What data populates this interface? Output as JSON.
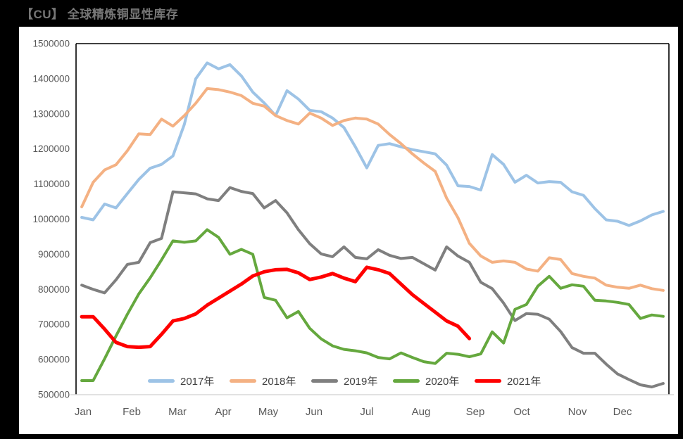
{
  "frame": {
    "title": "【CU】 全球精炼铜显性库存"
  },
  "styles": {
    "canvas_bg": "#000000",
    "panel_bg": "#FFFFFF",
    "title_color": "#777777",
    "axis_text": "#595959",
    "legend_text": "#404040",
    "plot_border": "#000000",
    "baseline": "#D9D9D9"
  },
  "chart_data": {
    "type": "line",
    "title": "【CU】 全球精炼铜显性库存",
    "x_unit": "weekly observations, January to December",
    "x_tick_labels": [
      "Jan",
      "Feb",
      "Mar",
      "Apr",
      "May",
      "Jun",
      "Jul",
      "Aug",
      "Sep",
      "Oct",
      "Nov",
      "Dec"
    ],
    "y_axis": {
      "min": 500000,
      "max": 1500000,
      "step": 100000
    },
    "grid": false,
    "legend_position": "bottom-inside",
    "legend": [
      "2017年",
      "2018年",
      "2019年",
      "2020年",
      "2021年"
    ],
    "series": [
      {
        "name": "2017年",
        "color": "#9DC3E6",
        "values": [
          1005000,
          998000,
          1043000,
          1032000,
          1073000,
          1113000,
          1145000,
          1156000,
          1180000,
          1270000,
          1400000,
          1445000,
          1428000,
          1440000,
          1408000,
          1362000,
          1331000,
          1295000,
          1366000,
          1342000,
          1310000,
          1306000,
          1288000,
          1261000,
          1206000,
          1146000,
          1210000,
          1215000,
          1206000,
          1198000,
          1192000,
          1186000,
          1154000,
          1095000,
          1093000,
          1083000,
          1184000,
          1156000,
          1105000,
          1125000,
          1103000,
          1107000,
          1105000,
          1078000,
          1068000,
          1030000,
          998000,
          994000,
          982000,
          995000,
          1012000,
          1022000
        ]
      },
      {
        "name": "2018年",
        "color": "#F4B183",
        "values": [
          1035000,
          1105000,
          1140000,
          1155000,
          1195000,
          1243000,
          1241000,
          1285000,
          1265000,
          1295000,
          1330000,
          1372000,
          1369000,
          1362000,
          1352000,
          1330000,
          1322000,
          1295000,
          1281000,
          1271000,
          1302000,
          1288000,
          1267000,
          1281000,
          1288000,
          1285000,
          1271000,
          1241000,
          1215000,
          1186000,
          1160000,
          1136000,
          1060000,
          1004000,
          931000,
          895000,
          877000,
          881000,
          877000,
          858000,
          852000,
          890000,
          885000,
          845000,
          837000,
          832000,
          812000,
          806000,
          803000,
          812000,
          802000,
          797000
        ]
      },
      {
        "name": "2019年",
        "color": "#7F7F7F",
        "values": [
          812000,
          800000,
          790000,
          827000,
          871000,
          877000,
          933000,
          945000,
          1078000,
          1075000,
          1072000,
          1058000,
          1053000,
          1090000,
          1079000,
          1073000,
          1032000,
          1053000,
          1018000,
          970000,
          930000,
          901000,
          893000,
          921000,
          891000,
          887000,
          913000,
          897000,
          888000,
          891000,
          873000,
          855000,
          921000,
          895000,
          877000,
          820000,
          802000,
          761000,
          711000,
          731000,
          729000,
          715000,
          680000,
          634000,
          618000,
          618000,
          587000,
          559000,
          543000,
          528000,
          522000,
          532000
        ]
      },
      {
        "name": "2020年",
        "color": "#65A83E",
        "values": [
          540000,
          540000,
          602000,
          667000,
          729000,
          787000,
          833000,
          884000,
          938000,
          934000,
          938000,
          970000,
          948000,
          900000,
          914000,
          900000,
          777000,
          769000,
          719000,
          737000,
          689000,
          659000,
          639000,
          629000,
          625000,
          619000,
          606000,
          602000,
          619000,
          606000,
          594000,
          589000,
          618000,
          615000,
          608000,
          616000,
          679000,
          647000,
          743000,
          757000,
          809000,
          837000,
          803000,
          813000,
          809000,
          769000,
          767000,
          763000,
          757000,
          717000,
          727000,
          723000
        ]
      },
      {
        "name": "2021年",
        "color": "#FF0000",
        "values": [
          722000,
          722000,
          687000,
          649000,
          637000,
          635000,
          637000,
          672000,
          710000,
          717000,
          730000,
          755000,
          775000,
          795000,
          815000,
          838000,
          850000,
          856000,
          857000,
          847000,
          828000,
          835000,
          845000,
          832000,
          822000,
          863000,
          856000,
          845000,
          815000,
          785000,
          760000,
          735000,
          710000,
          695000,
          660000
        ]
      }
    ]
  }
}
